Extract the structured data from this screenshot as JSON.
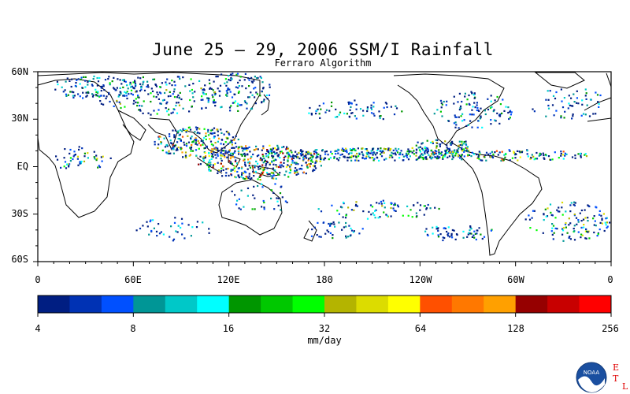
{
  "title": "June 25 – 29, 2006 SSM/I Rainfall",
  "subtitle": "Ferraro Algorithm",
  "lat_ticks": [
    "60N",
    "30N",
    "EQ",
    "30S",
    "60S"
  ],
  "lon_ticks": [
    "0",
    "60E",
    "120E",
    "180",
    "120W",
    "60W",
    "0"
  ],
  "colorbar": {
    "colors": [
      "#001e82",
      "#0032b4",
      "#0050ff",
      "#009696",
      "#00c8c8",
      "#00ffff",
      "#009600",
      "#00c800",
      "#00ff00",
      "#b4b400",
      "#dcdc00",
      "#ffff00",
      "#ff5000",
      "#ff7800",
      "#ffa000",
      "#960000",
      "#c80000",
      "#ff0000"
    ],
    "tick_labels": [
      "4",
      "8",
      "16",
      "32",
      "64",
      "128",
      "256"
    ],
    "units": "mm/day"
  },
  "logo": {
    "text": "NOAA",
    "side_letters": [
      "E",
      "T",
      "L"
    ]
  }
}
